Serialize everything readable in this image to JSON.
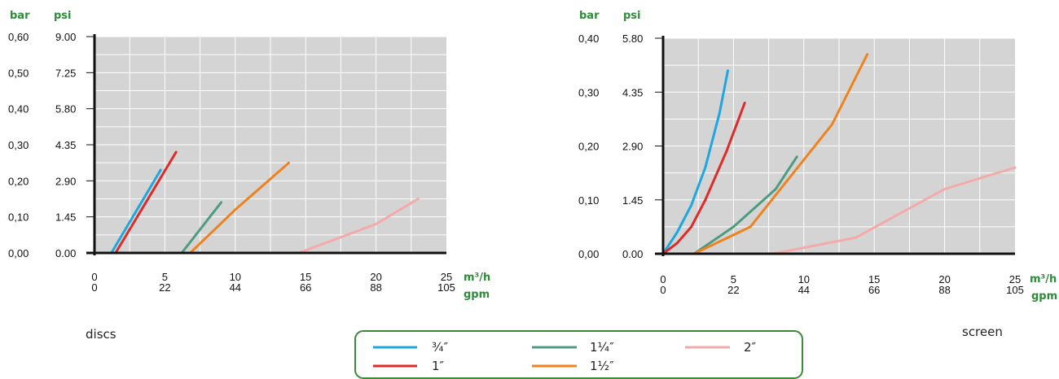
{
  "colors": {
    "plot_bg": "#d4d4d4",
    "grid": "#ffffff",
    "axis": "#111111",
    "unit_green": "#2e8b3a",
    "legend_border": "#3a8a3a"
  },
  "legend": {
    "entries": [
      {
        "label": "¾″",
        "color": "#1ea6e0"
      },
      {
        "label": "1″",
        "color": "#e02a2a"
      },
      {
        "label": "1¼″",
        "color": "#4f9b82"
      },
      {
        "label": "1½″",
        "color": "#f0821e"
      },
      {
        "label": "2″",
        "color": "#f4a9aa"
      }
    ]
  },
  "chart_data": [
    {
      "type": "line",
      "caption": "discs",
      "y_units": [
        "bar",
        "psi"
      ],
      "x_units": [
        "m³/h",
        "gpm"
      ],
      "y_ticks_bar": [
        "0,00",
        "0,10",
        "0,20",
        "0,30",
        "0,40",
        "0,50",
        "0,60"
      ],
      "y_ticks_psi": [
        "0.00",
        "1.45",
        "2.90",
        "4.35",
        "5.80",
        "7.25",
        "9.00"
      ],
      "x_ticks_m3h": [
        "0",
        "5",
        "10",
        "15",
        "20",
        "25"
      ],
      "x_ticks_gpm": [
        "0",
        "22",
        "44",
        "66",
        "88",
        "105"
      ],
      "xlim": [
        0,
        25
      ],
      "ylim": [
        0,
        0.6
      ],
      "grid": true,
      "series": [
        {
          "name": "¾″",
          "color": "#1ea6e0",
          "x": [
            1.2,
            4.7
          ],
          "y": [
            0.0,
            0.23
          ]
        },
        {
          "name": "1″",
          "color": "#e02a2a",
          "x": [
            1.5,
            5.8
          ],
          "y": [
            0.0,
            0.28
          ]
        },
        {
          "name": "1¼″",
          "color": "#4f9b82",
          "x": [
            6.2,
            7.2,
            9.0
          ],
          "y": [
            0.0,
            0.05,
            0.14
          ]
        },
        {
          "name": "1½″",
          "color": "#f0821e",
          "x": [
            6.8,
            10.0,
            13.8
          ],
          "y": [
            0.0,
            0.12,
            0.25
          ]
        },
        {
          "name": "2″",
          "color": "#f4a9aa",
          "x": [
            14.5,
            20.0,
            23.0
          ],
          "y": [
            0.0,
            0.08,
            0.15
          ]
        }
      ]
    },
    {
      "type": "line",
      "caption": "screen",
      "y_units": [
        "bar",
        "psi"
      ],
      "x_units": [
        "m³/h",
        "gpm"
      ],
      "y_ticks_bar": [
        "0,00",
        "0,10",
        "0,20",
        "0,30",
        "0,40"
      ],
      "y_ticks_psi": [
        "0.00",
        "1.45",
        "2.90",
        "4.35",
        "5.80"
      ],
      "x_ticks_m3h": [
        "0",
        "5",
        "10",
        "15",
        "20",
        "25"
      ],
      "x_ticks_gpm": [
        "0",
        "22",
        "44",
        "66",
        "88",
        "105"
      ],
      "xlim": [
        0,
        25
      ],
      "ylim": [
        0,
        0.4
      ],
      "grid": true,
      "series": [
        {
          "name": "¾″",
          "color": "#1ea6e0",
          "x": [
            0,
            1.0,
            2.0,
            3.0,
            4.0,
            4.6
          ],
          "y": [
            0.0,
            0.04,
            0.09,
            0.16,
            0.26,
            0.34
          ]
        },
        {
          "name": "1″",
          "color": "#e02a2a",
          "x": [
            0,
            1.0,
            2.0,
            3.0,
            4.5,
            5.8
          ],
          "y": [
            0.0,
            0.02,
            0.05,
            0.1,
            0.19,
            0.28
          ]
        },
        {
          "name": "1¼″",
          "color": "#4f9b82",
          "x": [
            2.2,
            5.0,
            8.0,
            9.5
          ],
          "y": [
            0.0,
            0.05,
            0.12,
            0.18
          ]
        },
        {
          "name": "1½″",
          "color": "#f0821e",
          "x": [
            2.2,
            6.2,
            12.0,
            14.5
          ],
          "y": [
            0.0,
            0.05,
            0.24,
            0.37
          ]
        },
        {
          "name": "2″",
          "color": "#f4a9aa",
          "x": [
            7.8,
            13.7,
            20.0,
            25.0
          ],
          "y": [
            0.0,
            0.03,
            0.12,
            0.16
          ]
        }
      ]
    }
  ]
}
